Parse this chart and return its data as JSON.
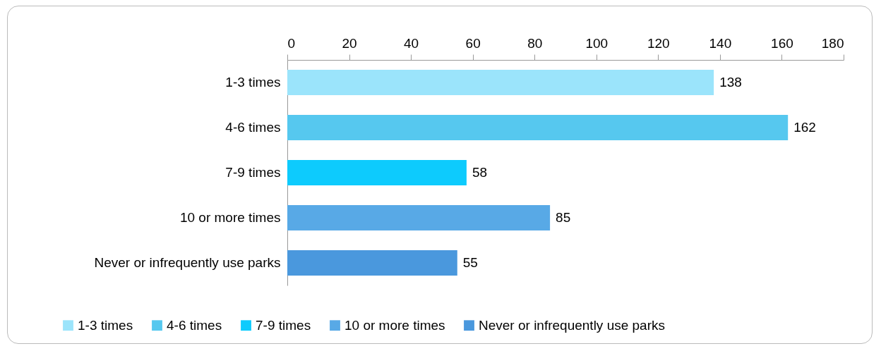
{
  "chart_data": {
    "type": "bar",
    "orientation": "horizontal",
    "categories": [
      "1-3 times",
      "4-6 times",
      "7-9 times",
      "10 or more times",
      "Never or infrequently use parks"
    ],
    "series": [
      {
        "name": "1-3 times",
        "color": "#9be4fb",
        "values": [
          138,
          null,
          null,
          null,
          null
        ]
      },
      {
        "name": "4-6 times",
        "color": "#56c8ef",
        "values": [
          null,
          162,
          null,
          null,
          null
        ]
      },
      {
        "name": "7-9 times",
        "color": "#0dcbfd",
        "values": [
          null,
          null,
          58,
          null,
          null
        ]
      },
      {
        "name": "10 or more times",
        "color": "#58a9e6",
        "values": [
          null,
          null,
          null,
          85,
          null
        ]
      },
      {
        "name": "Never or infrequently use parks",
        "color": "#4a98dd",
        "values": [
          null,
          null,
          null,
          null,
          55
        ]
      }
    ],
    "xlim": [
      0,
      180
    ],
    "xticks": [
      0,
      20,
      40,
      60,
      80,
      100,
      120,
      140,
      160,
      180
    ],
    "data_labels": true,
    "legend": "bottom"
  }
}
